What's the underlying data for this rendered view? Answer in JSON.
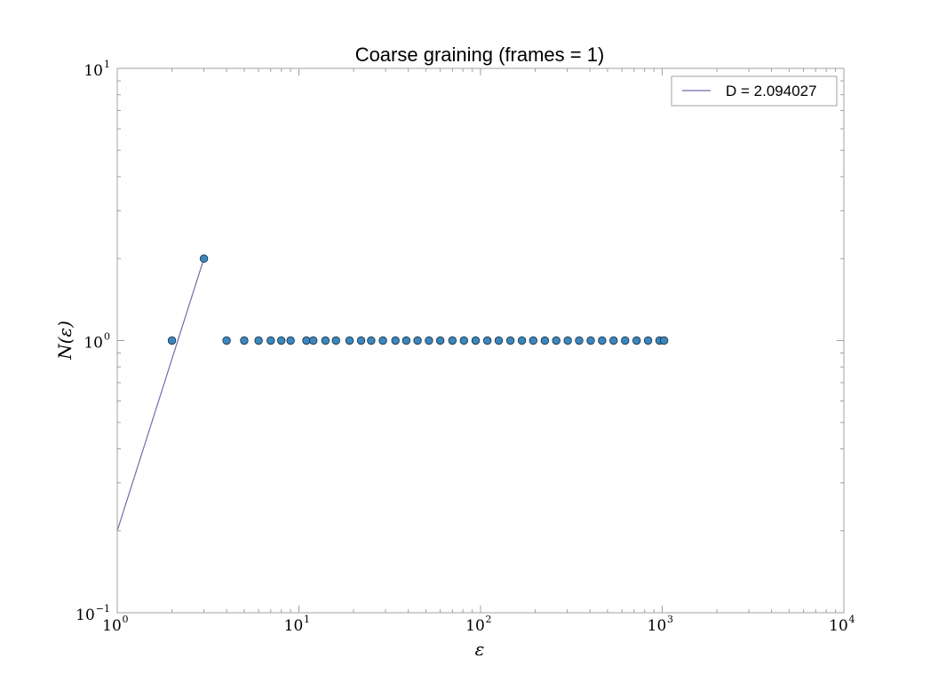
{
  "chart_data": {
    "type": "scatter",
    "title": "Coarse graining (frames = 1)",
    "xlabel": "ε",
    "ylabel": "N(ε)",
    "xscale": "log",
    "yscale": "log",
    "xlim": [
      1,
      10000
    ],
    "ylim": [
      0.1,
      10
    ],
    "grid": false,
    "legend_position": "top-right",
    "x_ticks": [
      {
        "value": 1,
        "base": "10",
        "exp": "0"
      },
      {
        "value": 10,
        "base": "10",
        "exp": "1"
      },
      {
        "value": 100,
        "base": "10",
        "exp": "2"
      },
      {
        "value": 1000,
        "base": "10",
        "exp": "3"
      },
      {
        "value": 10000,
        "base": "10",
        "exp": "4"
      }
    ],
    "y_ticks": [
      {
        "value": 0.1,
        "base": "10",
        "exp": "−1"
      },
      {
        "value": 1,
        "base": "10",
        "exp": "0"
      },
      {
        "value": 10,
        "base": "10",
        "exp": "1"
      }
    ],
    "points": {
      "x": [
        2,
        3,
        4,
        5,
        6,
        7,
        8,
        9,
        11,
        12,
        14,
        16,
        19,
        22,
        25,
        29,
        34,
        39,
        45,
        52,
        60,
        70,
        81,
        94,
        109,
        126,
        146,
        169,
        195,
        226,
        261,
        302,
        349,
        404,
        467,
        540,
        625,
        723,
        836,
        967,
        1024
      ],
      "y": [
        1,
        2,
        1,
        1,
        1,
        1,
        1,
        1,
        1,
        1,
        1,
        1,
        1,
        1,
        1,
        1,
        1,
        1,
        1,
        1,
        1,
        1,
        1,
        1,
        1,
        1,
        1,
        1,
        1,
        1,
        1,
        1,
        1,
        1,
        1,
        1,
        1,
        1,
        1,
        1,
        1
      ],
      "color": "#3a87c0"
    },
    "fit_line": {
      "name": "D = 2.094027",
      "x": [
        1,
        3
      ],
      "y": [
        0.2,
        2
      ],
      "color": "#6f6cae"
    }
  }
}
